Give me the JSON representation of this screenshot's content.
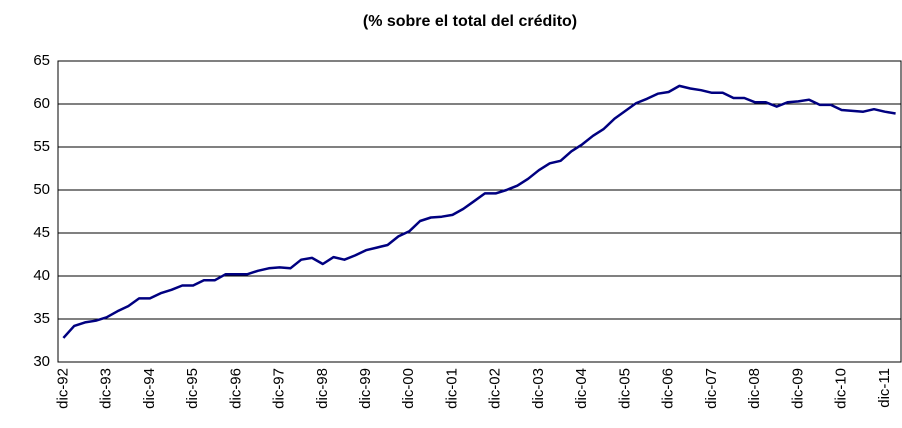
{
  "chart_data": {
    "type": "line",
    "title": "(% sobre el total del crédito)",
    "categories": [
      "dic-92",
      null,
      null,
      null,
      "dic-93",
      null,
      null,
      null,
      "dic-94",
      null,
      null,
      null,
      "dic-95",
      null,
      null,
      null,
      "dic-96",
      null,
      null,
      null,
      "dic-97",
      null,
      null,
      null,
      "dic-98",
      null,
      null,
      null,
      "dic-99",
      null,
      null,
      null,
      "dic-00",
      null,
      null,
      null,
      "dic-01",
      null,
      null,
      null,
      "dic-02",
      null,
      null,
      null,
      "dic-03",
      null,
      null,
      null,
      "dic-04",
      null,
      null,
      null,
      "dic-05",
      null,
      null,
      null,
      "dic-06",
      null,
      null,
      null,
      "dic-07",
      null,
      null,
      null,
      "dic-08",
      null,
      null,
      null,
      "dic-09",
      null,
      null,
      null,
      "dic-10",
      null,
      null,
      null,
      "dic-11",
      null
    ],
    "values": [
      32.8,
      34.2,
      34.6,
      34.8,
      35.2,
      35.9,
      36.5,
      37.4,
      37.4,
      38.0,
      38.4,
      38.9,
      38.9,
      39.5,
      39.5,
      40.2,
      40.2,
      40.2,
      40.6,
      40.9,
      41.0,
      40.9,
      41.9,
      42.1,
      41.4,
      42.2,
      41.9,
      42.4,
      43.0,
      43.3,
      43.6,
      44.6,
      45.2,
      46.4,
      46.8,
      46.9,
      47.1,
      47.8,
      48.7,
      49.6,
      49.6,
      50.0,
      50.5,
      51.3,
      52.3,
      53.1,
      53.4,
      54.5,
      55.3,
      56.3,
      57.1,
      58.3,
      59.2,
      60.1,
      60.6,
      61.2,
      61.4,
      62.1,
      61.8,
      61.6,
      61.3,
      61.3,
      60.7,
      60.7,
      60.2,
      60.2,
      59.7,
      60.2,
      60.3,
      60.5,
      59.9,
      59.9,
      59.3,
      59.2,
      59.1,
      59.4,
      59.1,
      58.9
    ],
    "color": "#000080",
    "ylim": [
      30,
      65
    ],
    "yticks": [
      30,
      35,
      40,
      45,
      50,
      55,
      60,
      65
    ],
    "grid": true
  }
}
